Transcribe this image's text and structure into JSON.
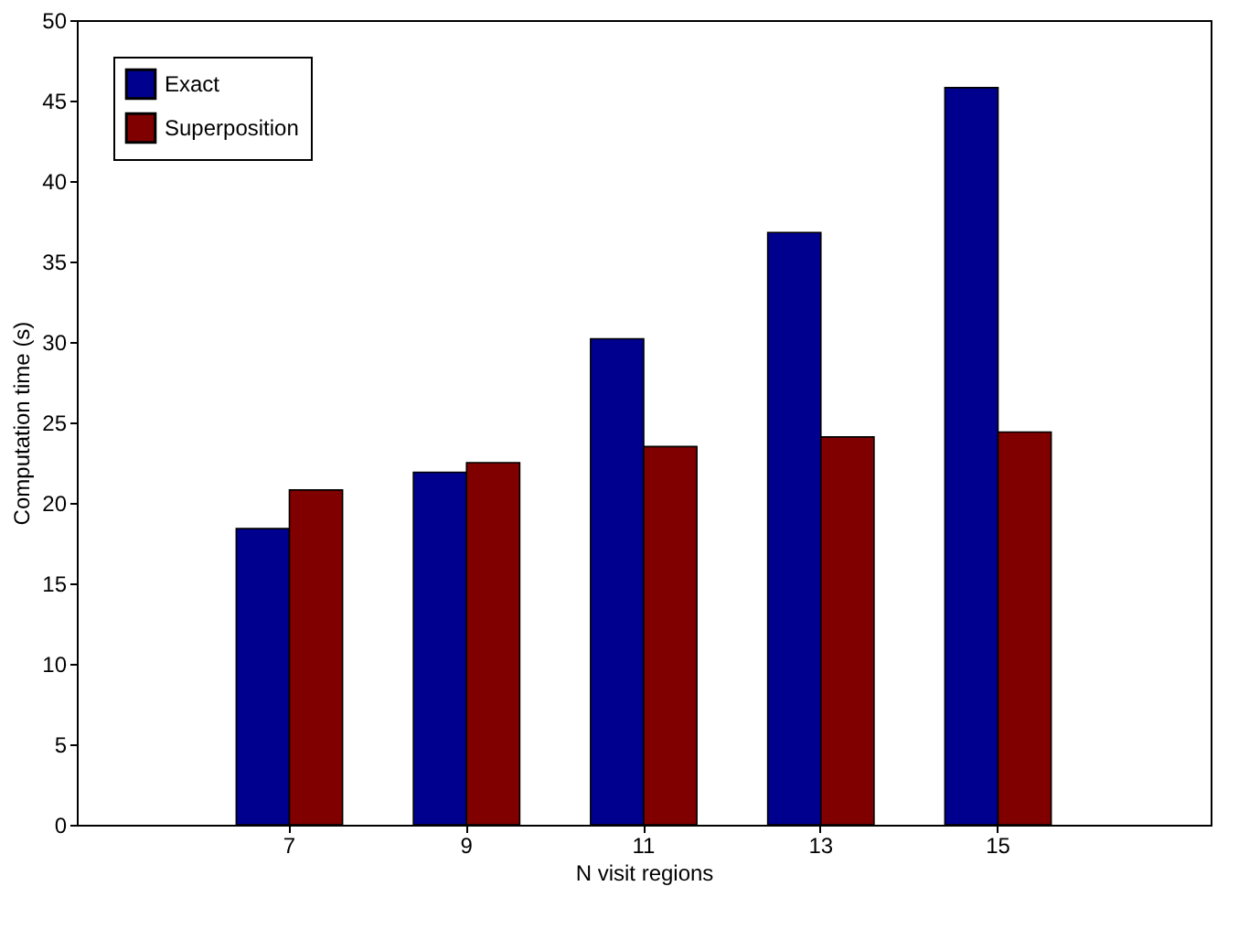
{
  "chart_data": {
    "type": "bar",
    "xlabel": "N visit regions",
    "ylabel": "Computation time (s)",
    "categories": [
      "7",
      "9",
      "11",
      "13",
      "15"
    ],
    "series": [
      {
        "name": "Exact",
        "color": "#00008f",
        "values": [
          18.4,
          21.9,
          30.2,
          36.8,
          45.8
        ]
      },
      {
        "name": "Superposition",
        "color": "#800000",
        "values": [
          20.8,
          22.5,
          23.5,
          24.1,
          24.4
        ]
      }
    ],
    "ylim": [
      0,
      50
    ],
    "yticks": [
      0,
      5,
      10,
      15,
      20,
      25,
      30,
      35,
      40,
      45,
      50
    ],
    "grid": false,
    "legend": "top left"
  }
}
